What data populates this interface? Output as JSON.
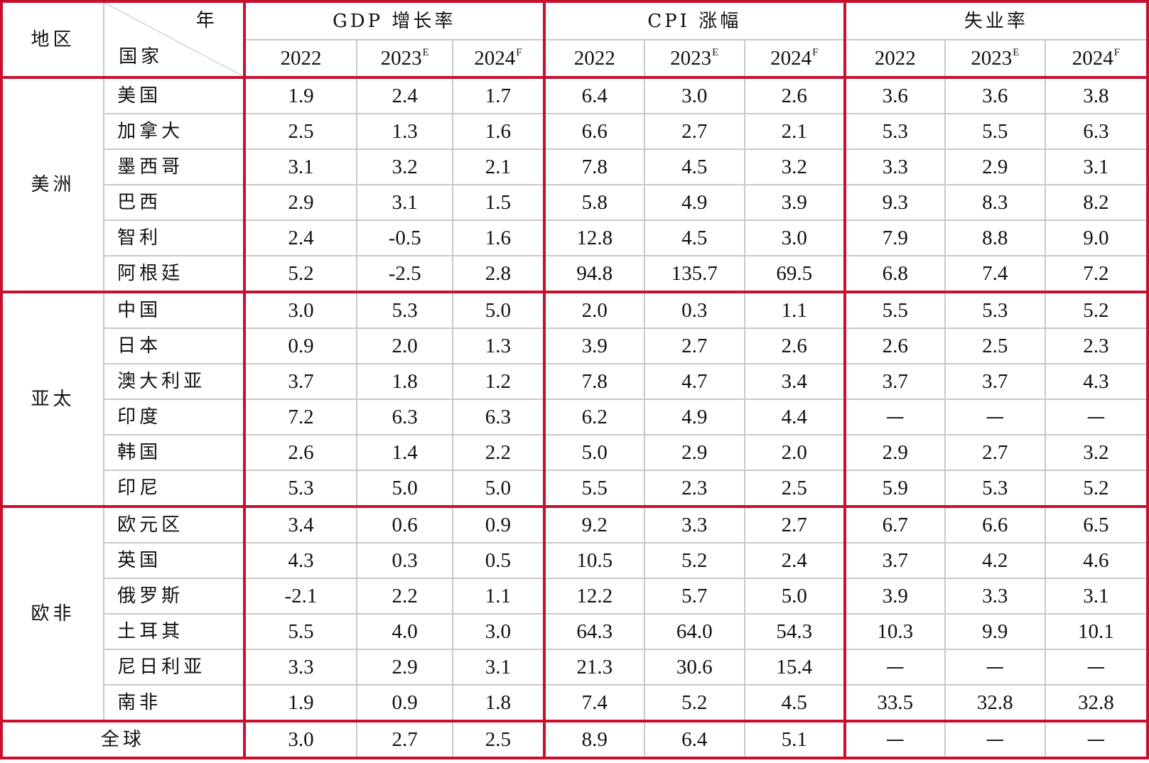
{
  "header": {
    "region_label": "地区",
    "year_label": "年",
    "country_label": "国家",
    "groups": [
      "GDP 增长率",
      "CPI 涨幅",
      "失业率"
    ],
    "years": [
      {
        "base": "2022",
        "sup": ""
      },
      {
        "base": "2023",
        "sup": "E"
      },
      {
        "base": "2024",
        "sup": "F"
      }
    ]
  },
  "regions": [
    {
      "name": "美洲",
      "rows": [
        {
          "country": "美国",
          "values": [
            "1.9",
            "2.4",
            "1.7",
            "6.4",
            "3.0",
            "2.6",
            "3.6",
            "3.6",
            "3.8"
          ]
        },
        {
          "country": "加拿大",
          "values": [
            "2.5",
            "1.3",
            "1.6",
            "6.6",
            "2.7",
            "2.1",
            "5.3",
            "5.5",
            "6.3"
          ]
        },
        {
          "country": "墨西哥",
          "values": [
            "3.1",
            "3.2",
            "2.1",
            "7.8",
            "4.5",
            "3.2",
            "3.3",
            "2.9",
            "3.1"
          ]
        },
        {
          "country": "巴西",
          "values": [
            "2.9",
            "3.1",
            "1.5",
            "5.8",
            "4.9",
            "3.9",
            "9.3",
            "8.3",
            "8.2"
          ]
        },
        {
          "country": "智利",
          "values": [
            "2.4",
            "-0.5",
            "1.6",
            "12.8",
            "4.5",
            "3.0",
            "7.9",
            "8.8",
            "9.0"
          ]
        },
        {
          "country": "阿根廷",
          "values": [
            "5.2",
            "-2.5",
            "2.8",
            "94.8",
            "135.7",
            "69.5",
            "6.8",
            "7.4",
            "7.2"
          ]
        }
      ]
    },
    {
      "name": "亚太",
      "rows": [
        {
          "country": "中国",
          "values": [
            "3.0",
            "5.3",
            "5.0",
            "2.0",
            "0.3",
            "1.1",
            "5.5",
            "5.3",
            "5.2"
          ]
        },
        {
          "country": "日本",
          "values": [
            "0.9",
            "2.0",
            "1.3",
            "3.9",
            "2.7",
            "2.6",
            "2.6",
            "2.5",
            "2.3"
          ]
        },
        {
          "country": "澳大利亚",
          "values": [
            "3.7",
            "1.8",
            "1.2",
            "7.8",
            "4.7",
            "3.4",
            "3.7",
            "3.7",
            "4.3"
          ]
        },
        {
          "country": "印度",
          "values": [
            "7.2",
            "6.3",
            "6.3",
            "6.2",
            "4.9",
            "4.4",
            "—",
            "—",
            "—"
          ]
        },
        {
          "country": "韩国",
          "values": [
            "2.6",
            "1.4",
            "2.2",
            "5.0",
            "2.9",
            "2.0",
            "2.9",
            "2.7",
            "3.2"
          ]
        },
        {
          "country": "印尼",
          "values": [
            "5.3",
            "5.0",
            "5.0",
            "5.5",
            "2.3",
            "2.5",
            "5.9",
            "5.3",
            "5.2"
          ]
        }
      ]
    },
    {
      "name": "欧非",
      "rows": [
        {
          "country": "欧元区",
          "values": [
            "3.4",
            "0.6",
            "0.9",
            "9.2",
            "3.3",
            "2.7",
            "6.7",
            "6.6",
            "6.5"
          ]
        },
        {
          "country": "英国",
          "values": [
            "4.3",
            "0.3",
            "0.5",
            "10.5",
            "5.2",
            "2.4",
            "3.7",
            "4.2",
            "4.6"
          ]
        },
        {
          "country": "俄罗斯",
          "values": [
            "-2.1",
            "2.2",
            "1.1",
            "12.2",
            "5.7",
            "5.0",
            "3.9",
            "3.3",
            "3.1"
          ]
        },
        {
          "country": "土耳其",
          "values": [
            "5.5",
            "4.0",
            "3.0",
            "64.3",
            "64.0",
            "54.3",
            "10.3",
            "9.9",
            "10.1"
          ]
        },
        {
          "country": "尼日利亚",
          "values": [
            "3.3",
            "2.9",
            "3.1",
            "21.3",
            "30.6",
            "15.4",
            "—",
            "—",
            "—"
          ]
        },
        {
          "country": "南非",
          "values": [
            "1.9",
            "0.9",
            "1.8",
            "7.4",
            "5.2",
            "4.5",
            "33.5",
            "32.8",
            "32.8"
          ]
        }
      ]
    }
  ],
  "total": {
    "label": "全球",
    "values": [
      "3.0",
      "2.7",
      "2.5",
      "8.9",
      "6.4",
      "5.1",
      "—",
      "—",
      "—"
    ]
  },
  "colors": {
    "accent_rule": "#c8102e",
    "grid": "#c9c9c9",
    "text": "#111111"
  }
}
